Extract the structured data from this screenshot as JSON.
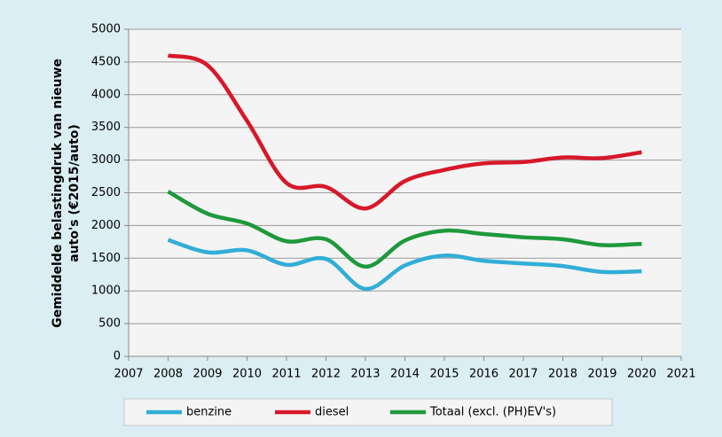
{
  "chart_data": {
    "type": "line",
    "ylabel": [
      "Gemiddelde belastingdruk van nieuwe",
      "auto's (€2015/auto)"
    ],
    "x": [
      2008,
      2009,
      2010,
      2011,
      2012,
      2013,
      2014,
      2015,
      2016,
      2017,
      2018,
      2019,
      2020
    ],
    "xlim": [
      2007,
      2021
    ],
    "xticks": [
      2007,
      2008,
      2009,
      2010,
      2011,
      2012,
      2013,
      2014,
      2015,
      2016,
      2017,
      2018,
      2019,
      2020,
      2021
    ],
    "ylim": [
      0,
      5000
    ],
    "yticks": [
      0,
      500,
      1000,
      1500,
      2000,
      2500,
      3000,
      3500,
      4000,
      4500,
      5000
    ],
    "grid": true,
    "legend": "bottom",
    "series": [
      {
        "name": "benzine",
        "color": "#31aed6",
        "values": [
          1780,
          1590,
          1620,
          1400,
          1490,
          1030,
          1390,
          1540,
          1460,
          1420,
          1380,
          1290,
          1300
        ]
      },
      {
        "name": "diesel",
        "color": "#d7182a",
        "values": [
          4600,
          4450,
          3600,
          2650,
          2590,
          2260,
          2680,
          2850,
          2950,
          2970,
          3040,
          3030,
          3120
        ]
      },
      {
        "name": "Totaal (excl. (PH)EV's)",
        "color": "#1e993c",
        "values": [
          2520,
          2180,
          2030,
          1760,
          1790,
          1370,
          1770,
          1920,
          1870,
          1820,
          1790,
          1700,
          1720
        ]
      }
    ]
  }
}
